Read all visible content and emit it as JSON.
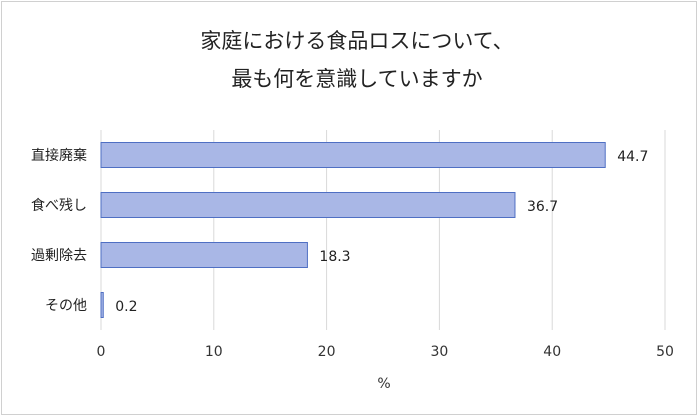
{
  "chart_data": {
    "type": "bar",
    "orientation": "horizontal",
    "title_lines": [
      "家庭における食品ロスについて、",
      "最も何を意識していますか"
    ],
    "categories": [
      "直接廃棄",
      "食べ残し",
      "過剰除去",
      "その他"
    ],
    "values": [
      44.7,
      36.7,
      18.3,
      0.2
    ],
    "value_labels": [
      "44.7",
      "36.7",
      "18.3",
      "0.2"
    ],
    "xlabel": "%",
    "ylabel": "",
    "xlim": [
      0,
      50
    ],
    "xticks": [
      0,
      10,
      20,
      30,
      40,
      50
    ],
    "grid": true,
    "legend": "none",
    "bar_fill": "#a9b7e6",
    "bar_stroke": "#4f6fc3",
    "grid_color": "#d9d9d9"
  }
}
